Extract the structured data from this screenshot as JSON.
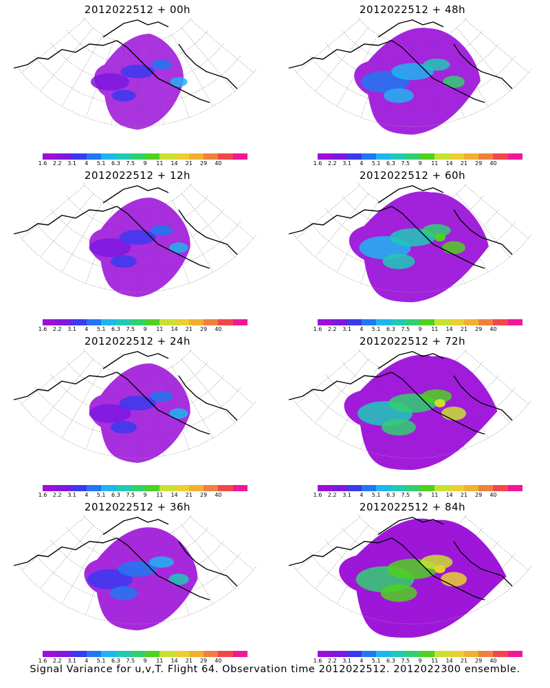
{
  "colorbar": {
    "labels": [
      "1.6",
      "2.2",
      "3.1",
      "4",
      "5.1",
      "6.3",
      "7.5",
      "9",
      "11",
      "14",
      "21",
      "29",
      "40"
    ],
    "colors": [
      "#9b10d8",
      "#7c18e0",
      "#3a3af0",
      "#1f78f0",
      "#20b4f0",
      "#20c8b8",
      "#30d070",
      "#50d020",
      "#c8e030",
      "#e8d030",
      "#f0b030",
      "#f08040",
      "#f04848",
      "#f01898"
    ]
  },
  "panels": [
    {
      "title": "2012022512 + 00h",
      "intensity": 0
    },
    {
      "title": "2012022512 + 48h",
      "intensity": 3
    },
    {
      "title": "2012022512 + 12h",
      "intensity": 1
    },
    {
      "title": "2012022512 + 60h",
      "intensity": 4
    },
    {
      "title": "2012022512 + 24h",
      "intensity": 1
    },
    {
      "title": "2012022512 + 72h",
      "intensity": 5
    },
    {
      "title": "2012022512 + 36h",
      "intensity": 2
    },
    {
      "title": "2012022512 + 84h",
      "intensity": 6
    }
  ],
  "footer": "Signal Variance for u,v,T. Flight 64. Observation time 2012022512. 2012022300 ensemble."
}
